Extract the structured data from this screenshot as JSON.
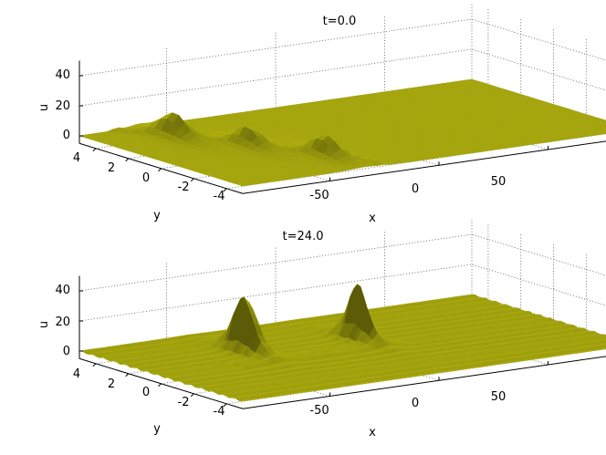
{
  "figure": {
    "surface_color": "#a5a50f",
    "surface_light": "#bdbd2a",
    "surface_dark": "#6f6f08"
  },
  "chart_data": [
    {
      "type": "surface",
      "title": "t=0.0",
      "xlabel": "x",
      "ylabel": "y",
      "zlabel": "u",
      "xlim": [
        -90,
        90
      ],
      "ylim": [
        -5,
        5
      ],
      "zlim": [
        -5,
        50
      ],
      "xticks": [
        "-50",
        "0",
        "50"
      ],
      "yticks": [
        "4",
        "2",
        "0",
        "-2",
        "-4"
      ],
      "zticks": [
        "0",
        "20",
        "40"
      ],
      "grid": true,
      "peaks": [
        {
          "x": -62,
          "y": 3.0,
          "u": 15
        },
        {
          "x": -48,
          "y": 0.3,
          "u": 12
        },
        {
          "x": -34,
          "y": -2.5,
          "u": 13
        }
      ],
      "ridges": false
    },
    {
      "type": "surface",
      "title": "t=24.0",
      "xlabel": "x",
      "ylabel": "y",
      "zlabel": "u",
      "xlim": [
        -90,
        90
      ],
      "ylim": [
        -5,
        5
      ],
      "zlim": [
        -5,
        50
      ],
      "xticks": [
        "-50",
        "0",
        "50"
      ],
      "yticks": [
        "4",
        "2",
        "0",
        "-2",
        "-4"
      ],
      "zticks": [
        "0",
        "20",
        "40"
      ],
      "grid": true,
      "peaks": [
        {
          "x": -40,
          "y": 1.5,
          "u": 47
        },
        {
          "x": 8,
          "y": 1.0,
          "u": 38
        }
      ],
      "ridges": true
    }
  ]
}
